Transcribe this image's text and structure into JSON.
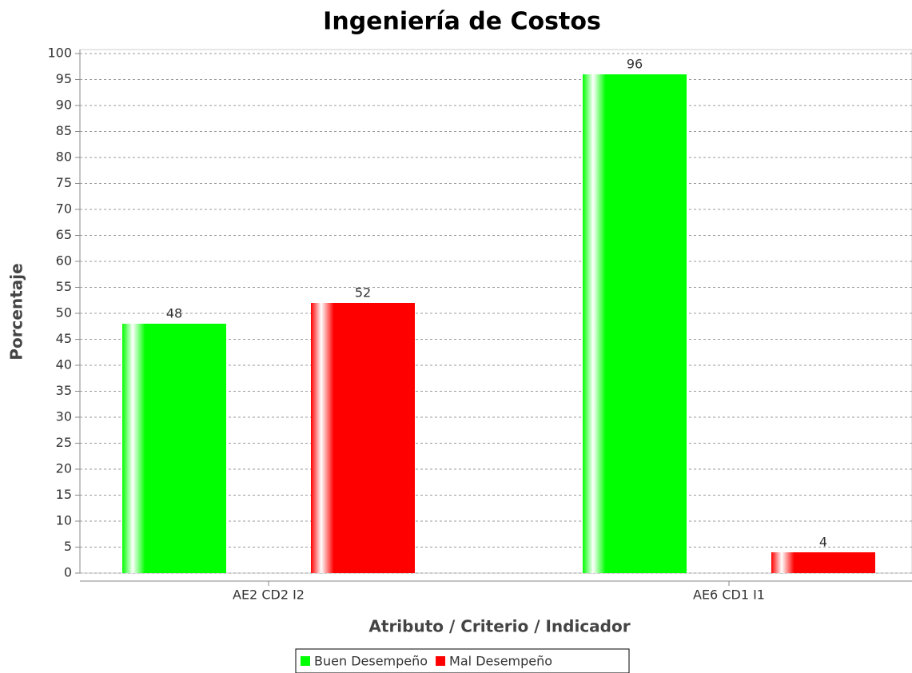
{
  "chart_data": {
    "type": "bar",
    "title": "Ingeniería de Costos",
    "x_label": "Atributo / Criterio / Indicador",
    "y_label": "Porcentaje",
    "categories": [
      "AE2 CD2 I2",
      "AE6 CD1 I1"
    ],
    "series": [
      {
        "name": "Buen Desempeño",
        "color": "#00ff00",
        "values": [
          48,
          96
        ]
      },
      {
        "name": "Mal Desempeño",
        "color": "#ff0000",
        "values": [
          52,
          4
        ]
      }
    ],
    "ylim": [
      0,
      100
    ],
    "yticks": [
      0,
      5,
      10,
      15,
      20,
      25,
      30,
      35,
      40,
      45,
      50,
      55,
      60,
      65,
      70,
      75,
      80,
      85,
      90,
      95,
      100
    ],
    "grid": true,
    "legend": "bottom"
  }
}
